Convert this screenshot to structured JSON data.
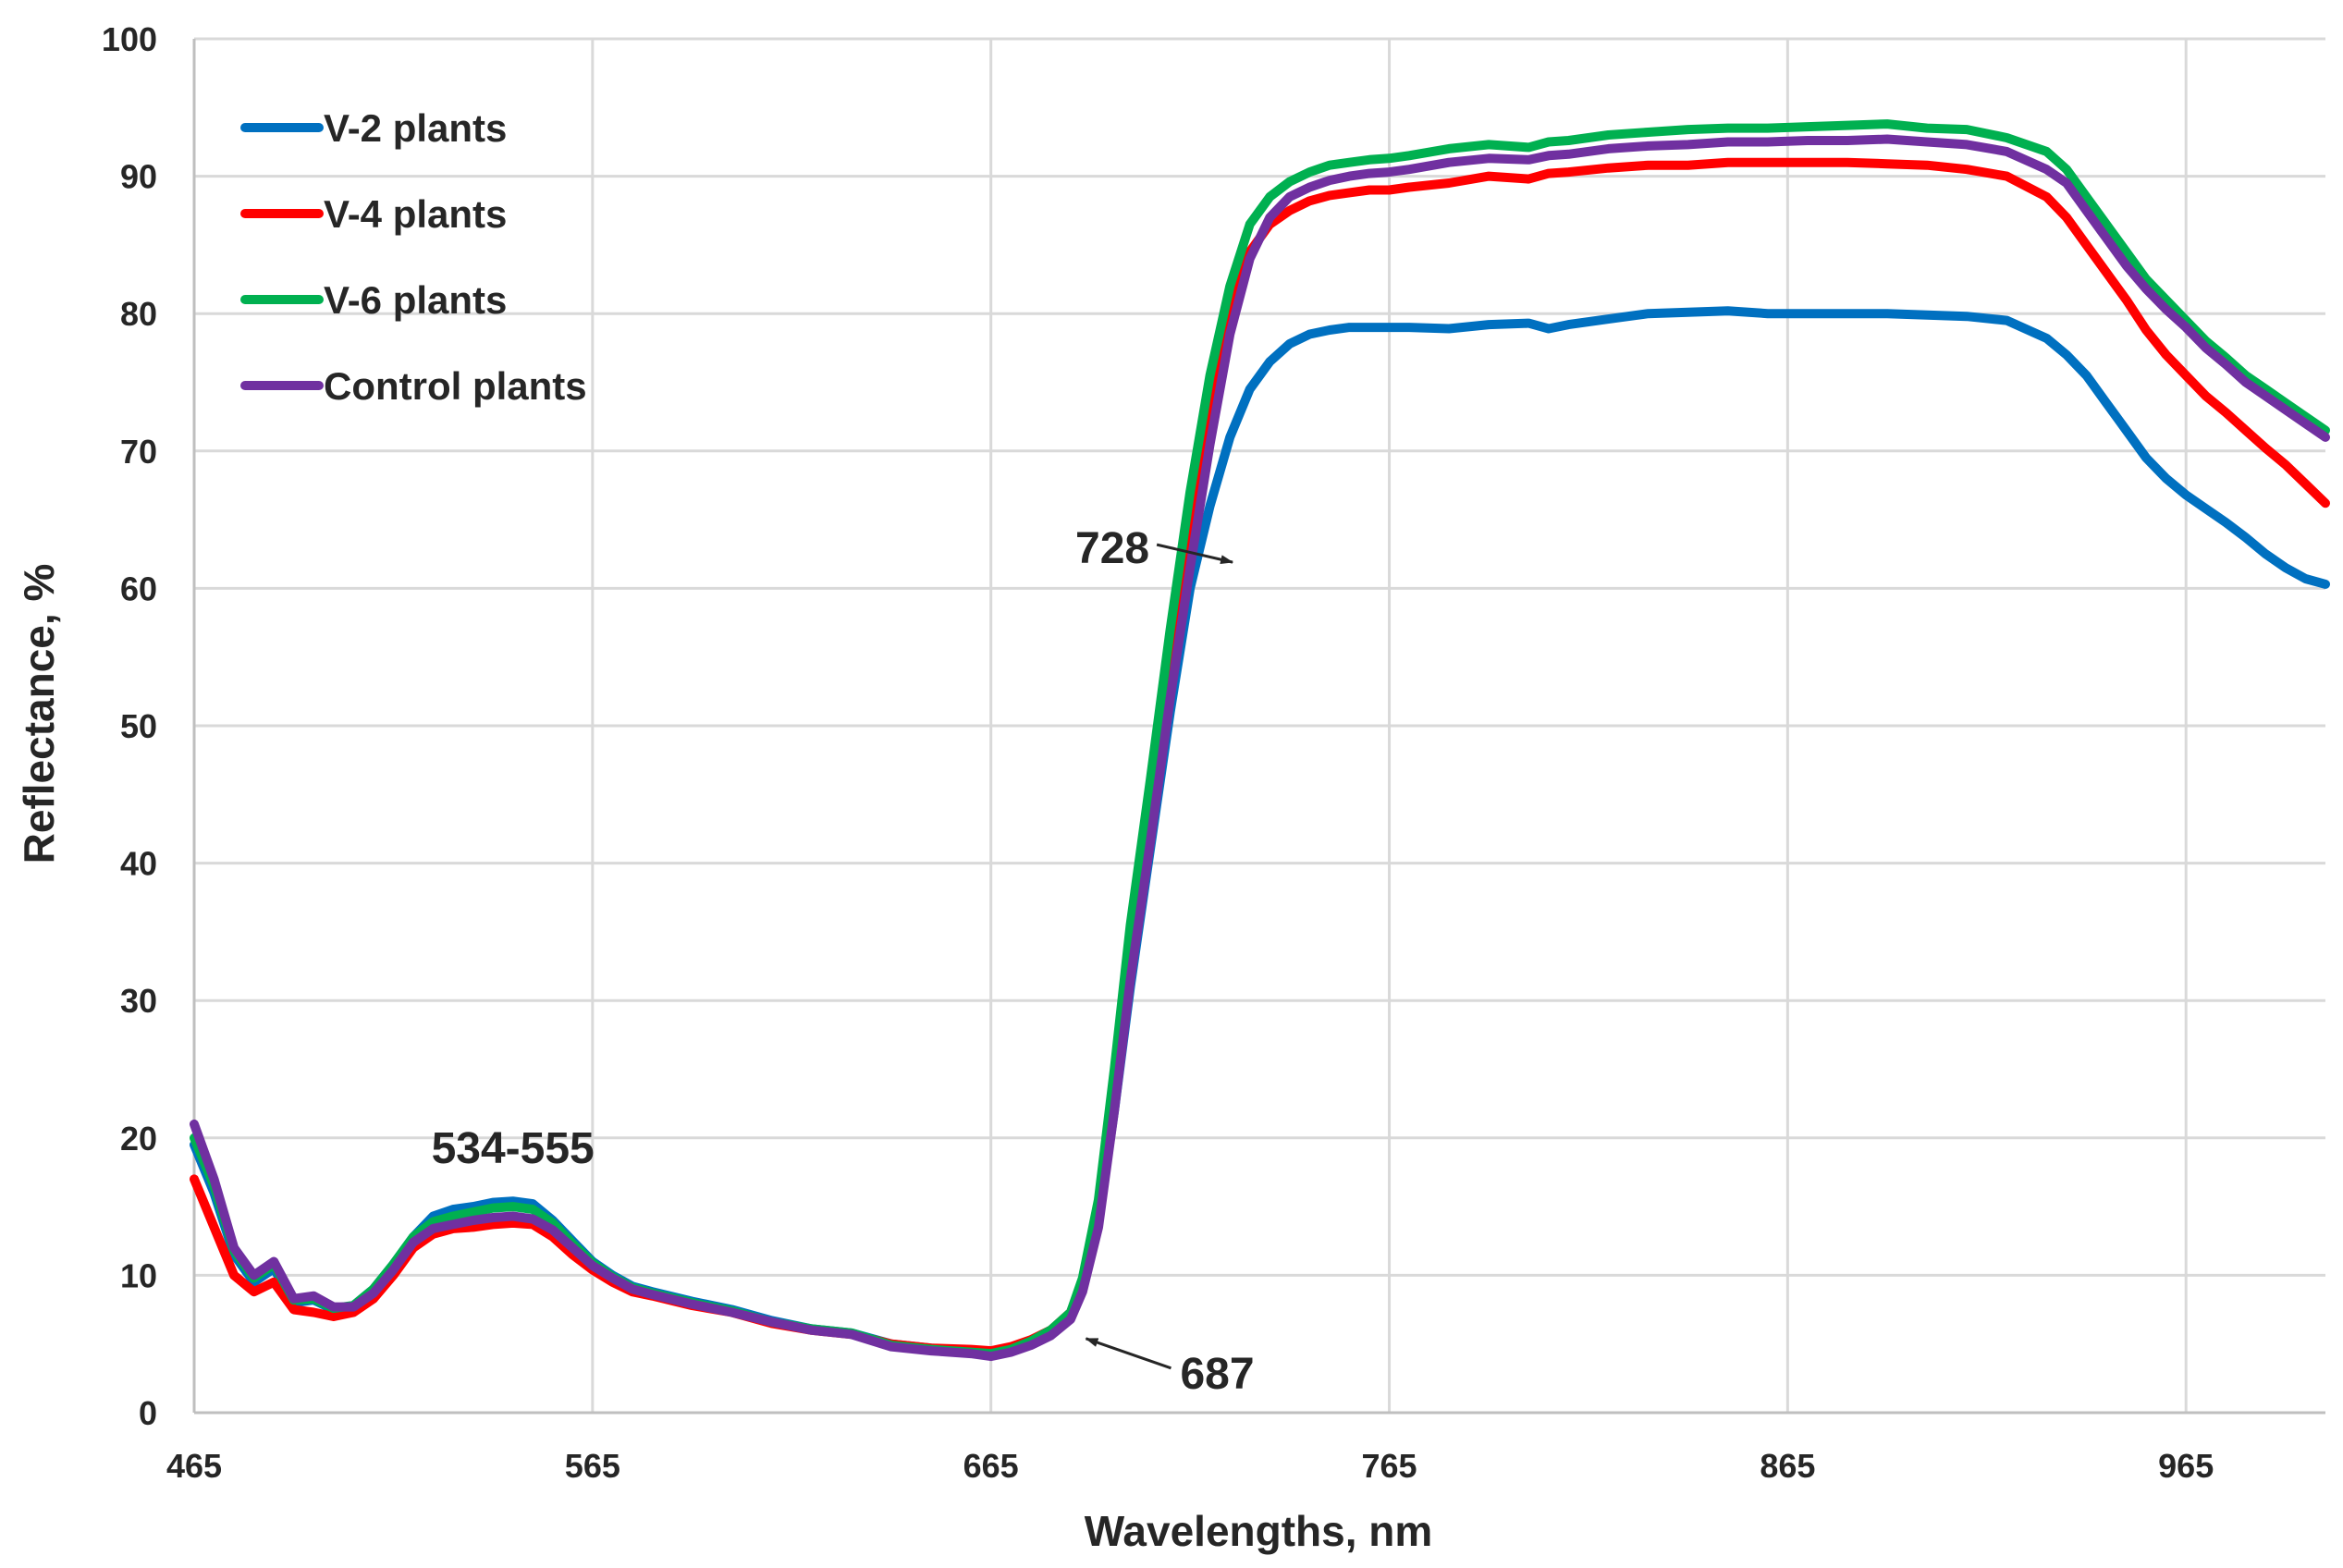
{
  "chart_data": {
    "type": "line",
    "xlabel": "Wavelengths, nm",
    "ylabel": "Reflectance, %",
    "xlim": [
      465,
      1000
    ],
    "ylim": [
      0,
      100
    ],
    "xticks": [
      465,
      565,
      665,
      765,
      865,
      965
    ],
    "yticks": [
      0,
      10,
      20,
      30,
      40,
      50,
      60,
      70,
      80,
      90,
      100
    ],
    "grid": true,
    "legend": "top-left",
    "series": [
      {
        "name": "V-2 plants",
        "color": "#0070C0",
        "x": [
          465,
          470,
          475,
          480,
          485,
          490,
          495,
          500,
          505,
          510,
          515,
          520,
          525,
          530,
          535,
          540,
          545,
          550,
          555,
          560,
          565,
          570,
          575,
          580,
          590,
          600,
          610,
          620,
          630,
          640,
          650,
          660,
          665,
          670,
          675,
          680,
          685,
          688,
          692,
          696,
          700,
          705,
          710,
          715,
          720,
          725,
          730,
          735,
          740,
          745,
          750,
          755,
          760,
          765,
          770,
          780,
          790,
          800,
          805,
          810,
          820,
          830,
          840,
          850,
          860,
          870,
          880,
          890,
          900,
          910,
          920,
          930,
          935,
          940,
          945,
          950,
          955,
          960,
          965,
          970,
          975,
          980,
          985,
          990,
          995,
          1000
        ],
        "y": [
          19.5,
          16.0,
          11.5,
          9.5,
          10.5,
          8.0,
          8.2,
          7.5,
          7.8,
          9.0,
          10.8,
          12.8,
          14.3,
          14.8,
          15.0,
          15.3,
          15.4,
          15.2,
          14.0,
          12.5,
          11.0,
          10.0,
          9.2,
          8.8,
          8.1,
          7.5,
          6.7,
          6.1,
          5.8,
          5.0,
          4.7,
          4.5,
          4.4,
          4.7,
          5.2,
          6.0,
          7.2,
          9.2,
          14.0,
          22.0,
          31.0,
          41.0,
          51.0,
          60.0,
          66.0,
          71.0,
          74.5,
          76.5,
          77.8,
          78.5,
          78.8,
          79.0,
          79.0,
          79.0,
          79.0,
          78.9,
          79.2,
          79.3,
          78.9,
          79.2,
          79.6,
          80.0,
          80.1,
          80.2,
          80.0,
          80.0,
          80.0,
          80.0,
          79.9,
          79.8,
          79.5,
          78.2,
          77.0,
          75.5,
          73.5,
          71.5,
          69.5,
          68.0,
          66.8,
          65.8,
          64.8,
          63.7,
          62.5,
          61.5,
          60.7,
          60.3
        ]
      },
      {
        "name": "V-4 plants",
        "color": "#FF0000",
        "x": [
          465,
          470,
          475,
          480,
          485,
          490,
          495,
          500,
          505,
          510,
          515,
          520,
          525,
          530,
          535,
          540,
          545,
          550,
          555,
          560,
          565,
          570,
          575,
          580,
          590,
          600,
          610,
          620,
          630,
          640,
          650,
          660,
          665,
          670,
          675,
          680,
          685,
          688,
          692,
          696,
          700,
          705,
          710,
          715,
          720,
          725,
          730,
          735,
          740,
          745,
          750,
          755,
          760,
          765,
          770,
          780,
          790,
          800,
          805,
          810,
          820,
          830,
          840,
          850,
          860,
          870,
          880,
          890,
          900,
          910,
          920,
          930,
          935,
          940,
          945,
          950,
          955,
          960,
          965,
          970,
          975,
          980,
          985,
          990,
          995,
          1000
        ],
        "y": [
          17.0,
          13.5,
          10.0,
          8.8,
          9.5,
          7.5,
          7.3,
          7.0,
          7.3,
          8.3,
          10.0,
          12.0,
          13.0,
          13.4,
          13.5,
          13.7,
          13.8,
          13.7,
          12.8,
          11.5,
          10.4,
          9.5,
          8.8,
          8.5,
          7.8,
          7.3,
          6.5,
          6.0,
          5.7,
          5.0,
          4.7,
          4.6,
          4.5,
          4.8,
          5.3,
          6.0,
          7.3,
          9.5,
          15.0,
          24.0,
          34.0,
          44.5,
          55.0,
          65.0,
          74.0,
          80.5,
          84.5,
          86.5,
          87.5,
          88.2,
          88.6,
          88.8,
          89.0,
          89.0,
          89.2,
          89.5,
          90.0,
          89.8,
          90.2,
          90.3,
          90.6,
          90.8,
          90.8,
          91.0,
          91.0,
          91.0,
          91.0,
          90.9,
          90.8,
          90.5,
          90.0,
          88.5,
          87.0,
          85.0,
          83.0,
          81.0,
          78.8,
          77.0,
          75.5,
          74.0,
          72.8,
          71.5,
          70.2,
          69.0,
          67.6,
          66.2
        ]
      },
      {
        "name": "V-6 plants",
        "color": "#00B050",
        "x": [
          465,
          470,
          475,
          480,
          485,
          490,
          495,
          500,
          505,
          510,
          515,
          520,
          525,
          530,
          535,
          540,
          545,
          550,
          555,
          560,
          565,
          570,
          575,
          580,
          590,
          600,
          610,
          620,
          630,
          640,
          650,
          660,
          665,
          670,
          675,
          680,
          685,
          688,
          692,
          696,
          700,
          705,
          710,
          715,
          720,
          725,
          730,
          735,
          740,
          745,
          750,
          755,
          760,
          765,
          770,
          780,
          790,
          800,
          805,
          810,
          820,
          830,
          840,
          850,
          860,
          870,
          880,
          890,
          900,
          910,
          920,
          930,
          935,
          940,
          945,
          950,
          955,
          960,
          965,
          970,
          975,
          980,
          985,
          990,
          995,
          1000
        ],
        "y": [
          20.0,
          16.5,
          11.8,
          9.8,
          10.8,
          8.2,
          8.3,
          7.6,
          7.8,
          9.0,
          10.8,
          12.8,
          13.9,
          14.3,
          14.6,
          14.9,
          15.0,
          14.8,
          13.8,
          12.3,
          10.9,
          9.9,
          9.1,
          8.7,
          8.0,
          7.4,
          6.6,
          6.1,
          5.8,
          4.9,
          4.6,
          4.4,
          4.3,
          4.6,
          5.2,
          6.0,
          7.3,
          9.8,
          15.5,
          25.0,
          35.5,
          46.0,
          57.0,
          67.0,
          75.5,
          82.0,
          86.5,
          88.5,
          89.6,
          90.3,
          90.8,
          91.0,
          91.2,
          91.3,
          91.5,
          92.0,
          92.3,
          92.1,
          92.5,
          92.6,
          93.0,
          93.2,
          93.4,
          93.5,
          93.5,
          93.6,
          93.7,
          93.8,
          93.5,
          93.4,
          92.8,
          91.8,
          90.5,
          88.5,
          86.5,
          84.5,
          82.5,
          81.0,
          79.5,
          78.0,
          76.8,
          75.5,
          74.5,
          73.5,
          72.5,
          71.5
        ]
      },
      {
        "name": "Control plants",
        "color": "#7030A0",
        "x": [
          465,
          470,
          475,
          480,
          485,
          490,
          495,
          500,
          505,
          510,
          515,
          520,
          525,
          530,
          535,
          540,
          545,
          550,
          555,
          560,
          565,
          570,
          575,
          580,
          590,
          600,
          610,
          620,
          630,
          640,
          650,
          660,
          665,
          670,
          675,
          680,
          685,
          688,
          692,
          696,
          700,
          705,
          710,
          715,
          720,
          725,
          730,
          735,
          740,
          745,
          750,
          755,
          760,
          765,
          770,
          780,
          790,
          800,
          805,
          810,
          820,
          830,
          840,
          850,
          860,
          870,
          880,
          890,
          900,
          910,
          920,
          930,
          935,
          940,
          945,
          950,
          955,
          960,
          965,
          970,
          975,
          980,
          985,
          990,
          995,
          1000
        ],
        "y": [
          21.0,
          17.0,
          12.0,
          10.0,
          11.0,
          8.3,
          8.5,
          7.7,
          7.7,
          8.7,
          10.4,
          12.4,
          13.4,
          13.7,
          14.0,
          14.2,
          14.3,
          14.1,
          13.3,
          12.0,
          10.7,
          9.8,
          9.0,
          8.6,
          7.9,
          7.3,
          6.6,
          6.0,
          5.7,
          4.8,
          4.5,
          4.3,
          4.1,
          4.4,
          4.9,
          5.6,
          6.8,
          8.8,
          13.5,
          22.0,
          31.5,
          41.5,
          52.0,
          61.5,
          70.5,
          78.5,
          84.0,
          87.0,
          88.5,
          89.2,
          89.7,
          90.0,
          90.2,
          90.3,
          90.5,
          91.0,
          91.3,
          91.2,
          91.5,
          91.6,
          92.0,
          92.2,
          92.3,
          92.5,
          92.5,
          92.6,
          92.6,
          92.7,
          92.5,
          92.3,
          91.8,
          90.5,
          89.5,
          87.5,
          85.5,
          83.5,
          81.8,
          80.3,
          79.0,
          77.5,
          76.3,
          75.0,
          74.0,
          73.0,
          72.0,
          71.0
        ]
      }
    ],
    "annotations": [
      {
        "text": "534-555",
        "x": 545,
        "y": 17.5,
        "arrow": false
      },
      {
        "text": "728",
        "x": 728,
        "y": 61.5,
        "arrow": true
      },
      {
        "text": "687",
        "x": 687,
        "y": 5.8,
        "arrow": true
      }
    ]
  }
}
